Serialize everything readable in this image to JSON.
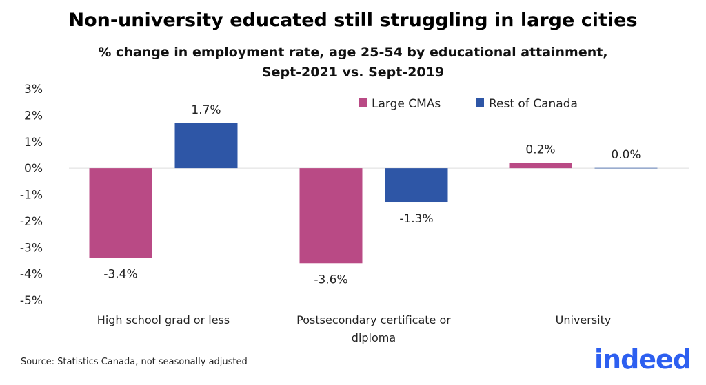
{
  "chart_data": {
    "type": "bar",
    "title": "Non-university educated still struggling in large cities",
    "subtitle_lines": [
      "% change in employment rate, age 25-54 by educational attainment,",
      "Sept-2021 vs. Sept-2019"
    ],
    "categories": [
      [
        "High school grad or less"
      ],
      [
        "Postsecondary certificate or",
        "diploma"
      ],
      [
        "University"
      ]
    ],
    "series": [
      {
        "name": "Large CMAs",
        "color": "#B94A85",
        "values": [
          -3.4,
          -3.6,
          0.2
        ],
        "labels": [
          "-3.4%",
          "-3.6%",
          "0.2%"
        ]
      },
      {
        "name": "Rest of Canada",
        "color": "#2E56A6",
        "values": [
          1.7,
          -1.3,
          0.0
        ],
        "labels": [
          "1.7%",
          "-1.3%",
          "0.0%"
        ]
      }
    ],
    "ylim": [
      -5,
      3
    ],
    "yticks": [
      3,
      2,
      1,
      0,
      -1,
      -2,
      -3,
      -4,
      -5
    ],
    "ytick_labels": [
      "3%",
      "2%",
      "1%",
      "0%",
      "-1%",
      "-2%",
      "-3%",
      "-4%",
      "-5%"
    ],
    "legend": "top-right",
    "grid": false
  },
  "source": "Source: Statistics Canada, not seasonally adjusted",
  "logo": "indeed"
}
